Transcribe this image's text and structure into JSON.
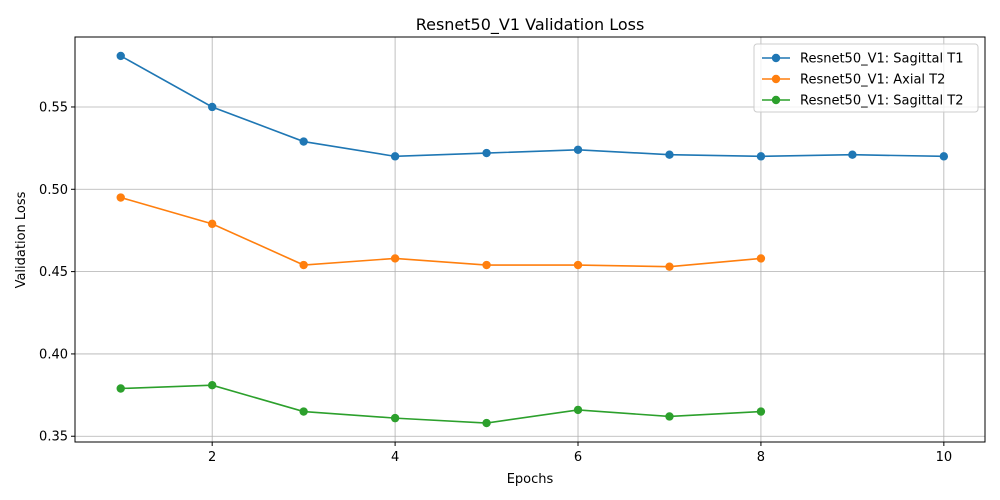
{
  "chart_data": {
    "type": "line",
    "title": "Resnet50_V1 Validation Loss",
    "xlabel": "Epochs",
    "ylabel": "Validation Loss",
    "xlim": [
      0.5,
      10.45
    ],
    "ylim": [
      0.3465,
      0.5925
    ],
    "x_ticks": [
      2,
      4,
      6,
      8,
      10
    ],
    "y_ticks": [
      0.35,
      0.4,
      0.45,
      0.5,
      0.55
    ],
    "x_tick_labels": [
      "2",
      "4",
      "6",
      "8",
      "10"
    ],
    "y_tick_labels": [
      "0.35",
      "0.40",
      "0.45",
      "0.50",
      "0.55"
    ],
    "grid": true,
    "legend_position": "upper right",
    "series": [
      {
        "name": "Resnet50_V1: Sagittal T1",
        "color": "#1f77b4",
        "x": [
          1,
          2,
          3,
          4,
          5,
          6,
          7,
          8,
          9,
          10
        ],
        "values": [
          0.581,
          0.55,
          0.529,
          0.52,
          0.522,
          0.524,
          0.521,
          0.52,
          0.521,
          0.52
        ]
      },
      {
        "name": "Resnet50_V1: Axial T2",
        "color": "#ff7f0e",
        "x": [
          1,
          2,
          3,
          4,
          5,
          6,
          7,
          8
        ],
        "values": [
          0.495,
          0.479,
          0.454,
          0.458,
          0.454,
          0.454,
          0.453,
          0.458
        ]
      },
      {
        "name": "Resnet50_V1: Sagittal T2",
        "color": "#2ca02c",
        "x": [
          1,
          2,
          3,
          4,
          5,
          6,
          7,
          8
        ],
        "values": [
          0.379,
          0.381,
          0.365,
          0.361,
          0.358,
          0.366,
          0.362,
          0.365
        ]
      }
    ]
  }
}
